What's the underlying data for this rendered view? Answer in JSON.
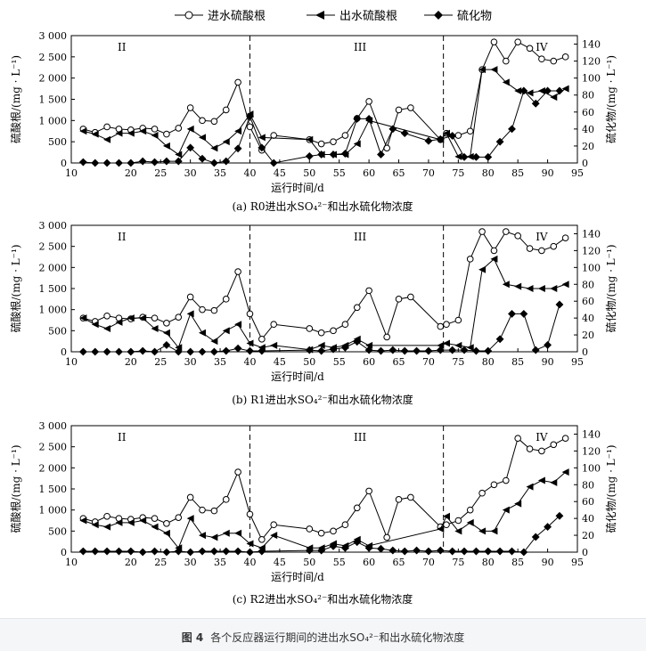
{
  "legend": {
    "items": [
      "进水硫酸根",
      "出水硫酸根",
      "硫化物"
    ]
  },
  "caption": {
    "figure_number": "图 4",
    "text": "各个反应器运行期间的进出水SO₄²⁻和出水硫化物浓度"
  },
  "chart_data": [
    {
      "type": "line",
      "panel_label": "(a)  R0进出水SO₄²⁻和出水硫化物浓度",
      "xlabel": "运行时间/d",
      "ylabel": "硫酸根/(mg · L⁻¹)",
      "y2label": "硫化物/(mg · L⁻¹)",
      "xlim": [
        10,
        95
      ],
      "xticks": [
        10,
        20,
        25,
        30,
        35,
        40,
        45,
        50,
        55,
        60,
        65,
        70,
        75,
        80,
        85,
        90,
        95
      ],
      "ylim": [
        0,
        3000
      ],
      "yticks": [
        0,
        500,
        1000,
        1500,
        2000,
        2500,
        3000
      ],
      "y2lim": [
        0,
        150
      ],
      "y2ticks": [
        0,
        20,
        40,
        60,
        80,
        100,
        120,
        140
      ],
      "stages": [
        "II",
        "III",
        "IV"
      ],
      "stage_boundaries": [
        40,
        72.5
      ],
      "series": [
        {
          "name": "进水硫酸根",
          "axis": "left",
          "marker": "open-circle",
          "x": [
            12,
            14,
            16,
            18,
            20,
            22,
            24,
            26,
            28,
            30,
            32,
            34,
            36,
            38,
            40,
            42,
            44,
            50,
            52,
            54,
            56,
            58,
            60,
            63,
            65,
            67,
            72,
            73,
            75,
            77,
            79,
            81,
            83,
            85,
            87,
            89,
            91,
            93
          ],
          "y": [
            800,
            720,
            850,
            800,
            780,
            820,
            800,
            680,
            820,
            1300,
            1000,
            980,
            1250,
            1900,
            850,
            300,
            650,
            550,
            450,
            500,
            650,
            1050,
            1450,
            350,
            1250,
            1300,
            550,
            700,
            650,
            750,
            2200,
            2850,
            2400,
            2850,
            2700,
            2450,
            2400,
            2500
          ]
        },
        {
          "name": "出水硫酸根",
          "axis": "left",
          "marker": "filled-left-triangle",
          "x": [
            12,
            14,
            16,
            18,
            20,
            22,
            24,
            26,
            28,
            30,
            32,
            34,
            36,
            38,
            40,
            42,
            50,
            52,
            54,
            56,
            58,
            60,
            72,
            73,
            75,
            77,
            79,
            81,
            83,
            85,
            87,
            89,
            91,
            93
          ],
          "y": [
            750,
            680,
            550,
            700,
            700,
            750,
            650,
            400,
            200,
            800,
            600,
            350,
            500,
            750,
            1150,
            600,
            550,
            200,
            200,
            200,
            450,
            1000,
            550,
            700,
            150,
            150,
            2200,
            2200,
            1900,
            1700,
            1650,
            1700,
            1550,
            1750
          ]
        },
        {
          "name": "硫化物",
          "axis": "right",
          "marker": "filled-diamond",
          "x": [
            12,
            14,
            16,
            18,
            20,
            22,
            24,
            26,
            28,
            30,
            32,
            34,
            36,
            38,
            40,
            42,
            44,
            50,
            52,
            54,
            56,
            58,
            60,
            62,
            64,
            66,
            70,
            72,
            74,
            76,
            78,
            80,
            82,
            84,
            86,
            88,
            90,
            92
          ],
          "y": [
            1,
            0,
            0,
            0,
            0,
            2,
            1,
            2,
            2,
            18,
            5,
            0,
            2,
            17,
            55,
            18,
            0,
            8,
            10,
            10,
            11,
            52,
            52,
            10,
            40,
            35,
            26,
            28,
            32,
            7,
            7,
            7,
            25,
            40,
            85,
            70,
            85,
            85
          ]
        }
      ]
    },
    {
      "type": "line",
      "panel_label": "(b)  R1进出水SO₄²⁻和出水硫化物浓度",
      "xlabel": "运行时间/d",
      "ylabel": "硫酸根/(mg · L⁻¹)",
      "y2label": "硫化物/(mg · L⁻¹)",
      "xlim": [
        10,
        95
      ],
      "xticks": [
        10,
        20,
        25,
        30,
        35,
        40,
        45,
        50,
        55,
        60,
        65,
        70,
        75,
        80,
        85,
        90,
        95
      ],
      "ylim": [
        0,
        3000
      ],
      "yticks": [
        0,
        500,
        1000,
        1500,
        2000,
        2500,
        3000
      ],
      "y2lim": [
        0,
        150
      ],
      "y2ticks": [
        0,
        20,
        40,
        60,
        80,
        100,
        120,
        140
      ],
      "stages": [
        "II",
        "III",
        "IV"
      ],
      "stage_boundaries": [
        40,
        72.5
      ],
      "series": [
        {
          "name": "进水硫酸根",
          "axis": "left",
          "marker": "open-circle",
          "x": [
            12,
            14,
            16,
            18,
            20,
            22,
            24,
            26,
            28,
            30,
            32,
            34,
            36,
            38,
            40,
            42,
            44,
            50,
            52,
            54,
            56,
            58,
            60,
            63,
            65,
            67,
            72,
            73,
            75,
            77,
            79,
            81,
            83,
            85,
            87,
            89,
            91,
            93
          ],
          "y": [
            800,
            720,
            850,
            800,
            780,
            820,
            800,
            680,
            820,
            1300,
            1000,
            980,
            1250,
            1900,
            900,
            300,
            650,
            550,
            450,
            500,
            650,
            1050,
            1450,
            350,
            1250,
            1300,
            600,
            650,
            750,
            2200,
            2850,
            2400,
            2850,
            2750,
            2450,
            2400,
            2500,
            2700
          ]
        },
        {
          "name": "出水硫酸根",
          "axis": "left",
          "marker": "filled-left-triangle",
          "x": [
            12,
            14,
            16,
            18,
            20,
            22,
            24,
            26,
            28,
            30,
            32,
            34,
            36,
            38,
            40,
            42,
            44,
            50,
            52,
            54,
            56,
            58,
            60,
            72,
            73,
            75,
            77,
            79,
            81,
            83,
            85,
            87,
            89,
            91,
            93
          ],
          "y": [
            800,
            650,
            550,
            700,
            800,
            800,
            550,
            450,
            100,
            900,
            450,
            250,
            500,
            650,
            200,
            100,
            150,
            50,
            150,
            100,
            150,
            300,
            150,
            150,
            200,
            150,
            100,
            1950,
            2200,
            1600,
            1550,
            1500,
            1500,
            1500,
            1600
          ]
        },
        {
          "name": "硫化物",
          "axis": "right",
          "marker": "filled-diamond",
          "x": [
            12,
            14,
            16,
            18,
            20,
            22,
            24,
            26,
            28,
            30,
            32,
            34,
            36,
            38,
            40,
            42,
            50,
            52,
            54,
            56,
            58,
            60,
            62,
            64,
            66,
            68,
            70,
            72,
            74,
            76,
            78,
            80,
            82,
            84,
            86,
            88,
            90,
            92
          ],
          "y": [
            0,
            0,
            0,
            0,
            0,
            1,
            0,
            8,
            0,
            0,
            0,
            0,
            1,
            4,
            1,
            1,
            2,
            1,
            3,
            5,
            12,
            2,
            1,
            2,
            1,
            1,
            1,
            2,
            2,
            2,
            1,
            1,
            15,
            45,
            45,
            2,
            8,
            56
          ]
        }
      ]
    },
    {
      "type": "line",
      "panel_label": "(c)  R2进出水SO₄²⁻和出水硫化物浓度",
      "xlabel": "运行时间/d",
      "ylabel": "硫酸根/(mg · L⁻¹)",
      "y2label": "硫化物/(mg · L⁻¹)",
      "xlim": [
        10,
        95
      ],
      "xticks": [
        10,
        20,
        25,
        30,
        35,
        40,
        45,
        50,
        55,
        60,
        65,
        70,
        75,
        80,
        85,
        90,
        95
      ],
      "ylim": [
        0,
        3000
      ],
      "yticks": [
        0,
        500,
        1000,
        1500,
        2000,
        2500,
        3000
      ],
      "y2lim": [
        0,
        150
      ],
      "y2ticks": [
        0,
        20,
        40,
        60,
        80,
        100,
        120,
        140
      ],
      "stages": [
        "II",
        "III",
        "IV"
      ],
      "stage_boundaries": [
        40,
        72.5
      ],
      "series": [
        {
          "name": "进水硫酸根",
          "axis": "left",
          "marker": "open-circle",
          "x": [
            12,
            14,
            16,
            18,
            20,
            22,
            24,
            26,
            28,
            30,
            32,
            34,
            36,
            38,
            40,
            42,
            44,
            50,
            52,
            54,
            56,
            58,
            60,
            63,
            65,
            67,
            72,
            73,
            75,
            77,
            79,
            81,
            83,
            85,
            87,
            89,
            91,
            93
          ],
          "y": [
            800,
            720,
            850,
            800,
            780,
            820,
            800,
            680,
            820,
            1300,
            1000,
            980,
            1250,
            1900,
            900,
            300,
            650,
            550,
            450,
            500,
            650,
            1050,
            1450,
            350,
            1250,
            1300,
            600,
            650,
            750,
            1000,
            1400,
            1600,
            1700,
            2700,
            2450,
            2400,
            2550,
            2700
          ]
        },
        {
          "name": "出水硫酸根",
          "axis": "left",
          "marker": "filled-left-triangle",
          "x": [
            12,
            14,
            16,
            18,
            20,
            22,
            24,
            26,
            28,
            30,
            32,
            34,
            36,
            38,
            40,
            42,
            44,
            50,
            52,
            54,
            56,
            58,
            60,
            72,
            73,
            75,
            77,
            79,
            81,
            83,
            85,
            87,
            89,
            91,
            93
          ],
          "y": [
            750,
            650,
            600,
            700,
            700,
            750,
            600,
            450,
            100,
            800,
            400,
            350,
            450,
            450,
            200,
            100,
            400,
            100,
            100,
            200,
            150,
            300,
            150,
            550,
            850,
            500,
            700,
            500,
            500,
            1000,
            1150,
            1550,
            1700,
            1650,
            1900
          ]
        },
        {
          "name": "硫化物",
          "axis": "right",
          "marker": "filled-diamond",
          "x": [
            12,
            14,
            16,
            18,
            20,
            22,
            24,
            26,
            28,
            30,
            32,
            34,
            36,
            38,
            40,
            42,
            50,
            52,
            54,
            56,
            58,
            60,
            62,
            64,
            66,
            68,
            70,
            72,
            74,
            76,
            78,
            80,
            82,
            84,
            86,
            88,
            90,
            92
          ],
          "y": [
            1,
            1,
            1,
            1,
            1,
            0,
            1,
            0,
            1,
            0,
            1,
            1,
            1,
            1,
            0,
            1,
            2,
            2,
            7,
            5,
            12,
            5,
            4,
            2,
            1,
            2,
            1,
            2,
            1,
            1,
            1,
            1,
            1,
            1,
            0,
            18,
            30,
            43
          ]
        }
      ]
    }
  ]
}
